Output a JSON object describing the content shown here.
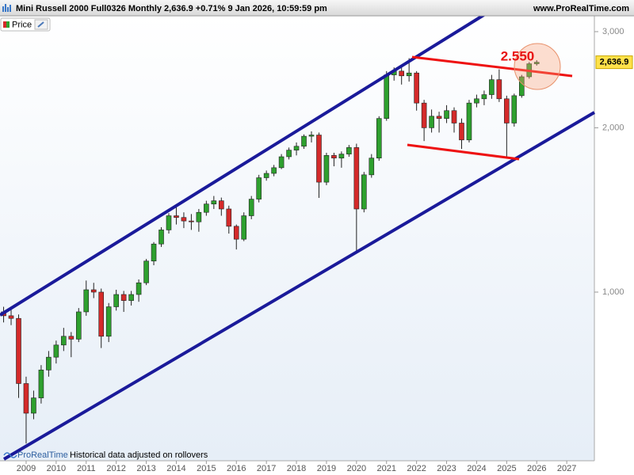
{
  "chart_data": {
    "type": "candlestick",
    "title": "Mini Russell 2000 Full0326 Monthly 2,636.9 +0.71% 9 Jan 2026, 10:59:59 pm",
    "source": "www.ProRealTime.com",
    "series_name": "Price",
    "brand": "ProRealTime",
    "footnote": "Historical data adjusted on rollovers",
    "annotation": "2.550",
    "up_color": "#2ea02e",
    "down_color": "#d42a2a",
    "log_scale": true,
    "last_label": {
      "value": 2636.9,
      "label": "2,636.9"
    },
    "ylim": [
      491,
      3207
    ],
    "yticks": [
      {
        "value": 1000,
        "label": "1,000"
      },
      {
        "value": 2000,
        "label": "2,000"
      },
      {
        "value": 3000,
        "label": "3,000"
      }
    ],
    "xlim": [
      2008.13,
      2027.92
    ],
    "xticks": [
      2009,
      2010,
      2011,
      2012,
      2013,
      2014,
      2015,
      2016,
      2017,
      2018,
      2019,
      2020,
      2021,
      2022,
      2023,
      2024,
      2025,
      2026,
      2027
    ],
    "x": [
      2008.25,
      2008.5,
      2008.75,
      2009,
      2009.25,
      2009.5,
      2009.75,
      2010,
      2010.25,
      2010.5,
      2010.75,
      2011,
      2011.25,
      2011.5,
      2011.75,
      2012,
      2012.25,
      2012.5,
      2012.75,
      2013,
      2013.25,
      2013.5,
      2013.75,
      2014,
      2014.25,
      2014.5,
      2014.75,
      2015,
      2015.25,
      2015.5,
      2015.75,
      2016,
      2016.25,
      2016.5,
      2016.75,
      2017,
      2017.25,
      2017.5,
      2017.75,
      2018,
      2018.25,
      2018.5,
      2018.75,
      2019,
      2019.25,
      2019.5,
      2019.75,
      2020,
      2020.25,
      2020.5,
      2020.75,
      2021,
      2021.25,
      2021.5,
      2021.75,
      2022,
      2022.25,
      2022.5,
      2022.75,
      2023,
      2023.25,
      2023.5,
      2023.75,
      2024,
      2024.25,
      2024.5,
      2024.75,
      2025,
      2025.25,
      2025.5,
      2025.75,
      2026
    ],
    "open": [
      920,
      905,
      895,
      680,
      600,
      640,
      720,
      760,
      800,
      830,
      820,
      920,
      1010,
      1000,
      830,
      940,
      990,
      965,
      990,
      1040,
      1140,
      1225,
      1300,
      1380,
      1370,
      1350,
      1345,
      1400,
      1450,
      1470,
      1420,
      1320,
      1250,
      1380,
      1480,
      1620,
      1650,
      1690,
      1770,
      1820,
      1850,
      1930,
      1940,
      1590,
      1780,
      1760,
      1790,
      1840,
      1420,
      1640,
      1760,
      2080,
      2500,
      2540,
      2490,
      2520,
      2220,
      2000,
      2100,
      2080,
      2150,
      2040,
      1900,
      2220,
      2260,
      2300,
      2450,
      2260,
      2040,
      2290,
      2480,
      2620
    ],
    "high": [
      940,
      935,
      910,
      700,
      660,
      735,
      780,
      815,
      860,
      845,
      935,
      1050,
      1040,
      1015,
      955,
      1010,
      1005,
      1005,
      1055,
      1150,
      1235,
      1315,
      1395,
      1430,
      1400,
      1390,
      1420,
      1470,
      1500,
      1490,
      1440,
      1330,
      1400,
      1500,
      1640,
      1670,
      1710,
      1790,
      1840,
      1880,
      1945,
      1970,
      1960,
      1800,
      1800,
      1810,
      1860,
      1870,
      1660,
      1790,
      2100,
      2540,
      2580,
      2580,
      2682,
      2540,
      2250,
      2160,
      2140,
      2200,
      2180,
      2080,
      2250,
      2300,
      2340,
      2500,
      2559,
      2290,
      2310,
      2500,
      2640,
      2660
    ],
    "low": [
      880,
      870,
      640,
      528,
      585,
      625,
      700,
      740,
      780,
      760,
      810,
      905,
      975,
      790,
      810,
      925,
      920,
      945,
      960,
      1030,
      1120,
      1210,
      1280,
      1330,
      1310,
      1300,
      1290,
      1380,
      1420,
      1380,
      1280,
      1197,
      1240,
      1360,
      1460,
      1600,
      1630,
      1680,
      1750,
      1780,
      1830,
      1880,
      1488,
      1570,
      1700,
      1690,
      1770,
      1178,
      1400,
      1620,
      1740,
      2060,
      2440,
      2400,
      2430,
      2150,
      1891,
      1960,
      1960,
      2040,
      1960,
      1829,
      1880,
      2180,
      2200,
      2260,
      2230,
      1769,
      2010,
      2270,
      2460,
      2600
    ],
    "close": [
      905,
      895,
      680,
      600,
      640,
      720,
      760,
      800,
      830,
      820,
      920,
      1010,
      1000,
      830,
      940,
      990,
      965,
      990,
      1040,
      1140,
      1225,
      1300,
      1380,
      1370,
      1350,
      1345,
      1400,
      1450,
      1470,
      1420,
      1320,
      1250,
      1380,
      1480,
      1620,
      1650,
      1690,
      1770,
      1820,
      1850,
      1930,
      1940,
      1590,
      1780,
      1760,
      1790,
      1840,
      1420,
      1640,
      1760,
      2080,
      2500,
      2540,
      2490,
      2520,
      2220,
      2000,
      2100,
      2080,
      2150,
      2040,
      1900,
      2220,
      2260,
      2300,
      2450,
      2260,
      2040,
      2290,
      2480,
      2620,
      2636.9
    ]
  }
}
